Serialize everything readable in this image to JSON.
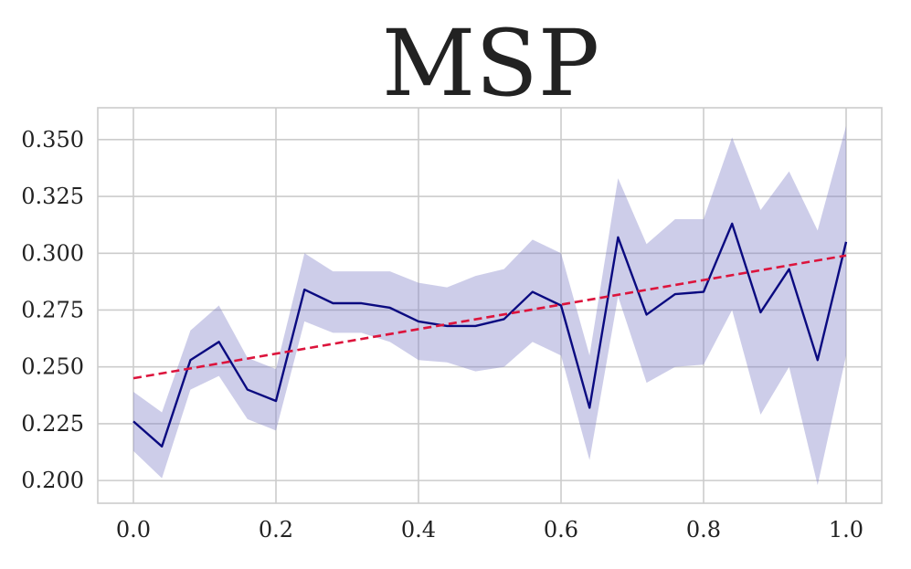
{
  "chart_data": {
    "type": "line",
    "title": "MSP",
    "xlabel": "",
    "ylabel": "",
    "xlim": [
      -0.05,
      1.05
    ],
    "ylim": [
      0.19,
      0.364
    ],
    "grid": true,
    "x_ticks": [
      "0.0",
      "0.2",
      "0.4",
      "0.6",
      "0.8",
      "1.0"
    ],
    "x_tick_values": [
      0.0,
      0.2,
      0.4,
      0.6,
      0.8,
      1.0
    ],
    "y_ticks": [
      "0.200",
      "0.225",
      "0.250",
      "0.275",
      "0.300",
      "0.325",
      "0.350"
    ],
    "y_tick_values": [
      0.2,
      0.225,
      0.25,
      0.275,
      0.3,
      0.325,
      0.35
    ],
    "series": [
      {
        "style": "solid",
        "color": "#0a0a80",
        "band_color": "#7b7bc4",
        "x": [
          0.0,
          0.04,
          0.08,
          0.12,
          0.16,
          0.2,
          0.24,
          0.28,
          0.32,
          0.36,
          0.4,
          0.44,
          0.48,
          0.52,
          0.56,
          0.6,
          0.64,
          0.68,
          0.72,
          0.76,
          0.8,
          0.84,
          0.88,
          0.92,
          0.96,
          1.0
        ],
        "y": [
          0.226,
          0.215,
          0.253,
          0.261,
          0.24,
          0.235,
          0.284,
          0.278,
          0.278,
          0.276,
          0.27,
          0.268,
          0.268,
          0.271,
          0.283,
          0.277,
          0.232,
          0.307,
          0.273,
          0.282,
          0.283,
          0.313,
          0.274,
          0.293,
          0.253,
          0.305
        ],
        "lower": [
          0.213,
          0.201,
          0.24,
          0.246,
          0.227,
          0.222,
          0.27,
          0.265,
          0.265,
          0.261,
          0.253,
          0.252,
          0.248,
          0.25,
          0.261,
          0.255,
          0.209,
          0.281,
          0.243,
          0.25,
          0.251,
          0.275,
          0.229,
          0.25,
          0.198,
          0.255
        ],
        "upper": [
          0.239,
          0.23,
          0.266,
          0.277,
          0.254,
          0.249,
          0.3,
          0.292,
          0.292,
          0.292,
          0.287,
          0.285,
          0.29,
          0.293,
          0.306,
          0.3,
          0.255,
          0.333,
          0.304,
          0.315,
          0.315,
          0.351,
          0.319,
          0.336,
          0.31,
          0.356
        ]
      },
      {
        "style": "dashed",
        "color": "#dc143c",
        "x": [
          0.0,
          1.0
        ],
        "y": [
          0.245,
          0.299
        ]
      }
    ]
  }
}
